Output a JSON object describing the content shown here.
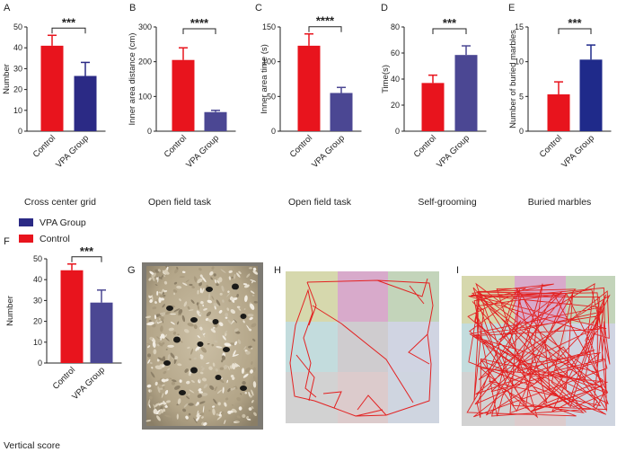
{
  "colors": {
    "control": "#e8141d",
    "vpa_a": "#2b2a85",
    "vpa_b": "#4b4793",
    "vpa_e": "#1f2a8a",
    "axis": "#222222"
  },
  "legend": {
    "vpa": "VPA Group",
    "control": "Control"
  },
  "panel_labels": [
    "A",
    "B",
    "C",
    "D",
    "E",
    "F",
    "G",
    "H",
    "I"
  ],
  "captions": {
    "A": "Cross center grid",
    "B": "Open field task",
    "C": "Open field task",
    "D": "Self-grooming",
    "E": "Buried marbles",
    "F": "Vertical score"
  },
  "chart_data": [
    {
      "id": "A",
      "type": "bar",
      "categories": [
        "Control",
        "VPA Group"
      ],
      "values": [
        41,
        26.5
      ],
      "errors": [
        5,
        6.5
      ],
      "ylabel": "Number",
      "ylim": [
        0,
        50
      ],
      "yticks": [
        "0",
        "10",
        "20",
        "30",
        "40",
        "50"
      ],
      "significance": "***",
      "title": "Cross center grid"
    },
    {
      "id": "B",
      "type": "bar",
      "categories": [
        "Control",
        "VPA Group"
      ],
      "values": [
        205,
        55
      ],
      "errors": [
        35,
        5
      ],
      "ylabel": "Inner area distance  (cm)",
      "ylim": [
        0,
        300
      ],
      "yticks": [
        "0",
        "100",
        "200",
        "300"
      ],
      "significance": "****",
      "title": "Open field task"
    },
    {
      "id": "C",
      "type": "bar",
      "categories": [
        "Control",
        "VPA Group"
      ],
      "values": [
        123,
        55
      ],
      "errors": [
        17,
        8
      ],
      "ylabel": "Inner area time  (s)",
      "ylim": [
        0,
        150
      ],
      "yticks": [
        "0",
        "50",
        "100",
        "150"
      ],
      "significance": "****",
      "title": "Open field task"
    },
    {
      "id": "D",
      "type": "bar",
      "categories": [
        "Control",
        "VPA Group"
      ],
      "values": [
        37,
        58.5
      ],
      "errors": [
        6,
        7
      ],
      "ylabel": "Time(s)",
      "ylim": [
        0,
        80
      ],
      "yticks": [
        "0",
        "20",
        "40",
        "60",
        "80"
      ],
      "significance": "***",
      "title": "Self-grooming"
    },
    {
      "id": "E",
      "type": "bar",
      "categories": [
        "Control",
        "VPA Group"
      ],
      "values": [
        5.3,
        10.3
      ],
      "errors": [
        1.8,
        2.1
      ],
      "ylabel": "Number of buried marbles",
      "ylim": [
        0,
        15
      ],
      "yticks": [
        "0",
        "5",
        "10",
        "15"
      ],
      "significance": "***",
      "title": "Buried marbles"
    },
    {
      "id": "F",
      "type": "bar",
      "categories": [
        "Control",
        "VPA Group"
      ],
      "values": [
        44.5,
        29
      ],
      "errors": [
        3,
        6
      ],
      "ylabel": "Number",
      "ylim": [
        0,
        50
      ],
      "yticks": [
        "0",
        "10",
        "20",
        "30",
        "40",
        "50"
      ],
      "significance": "***",
      "title": "Vertical score"
    }
  ]
}
